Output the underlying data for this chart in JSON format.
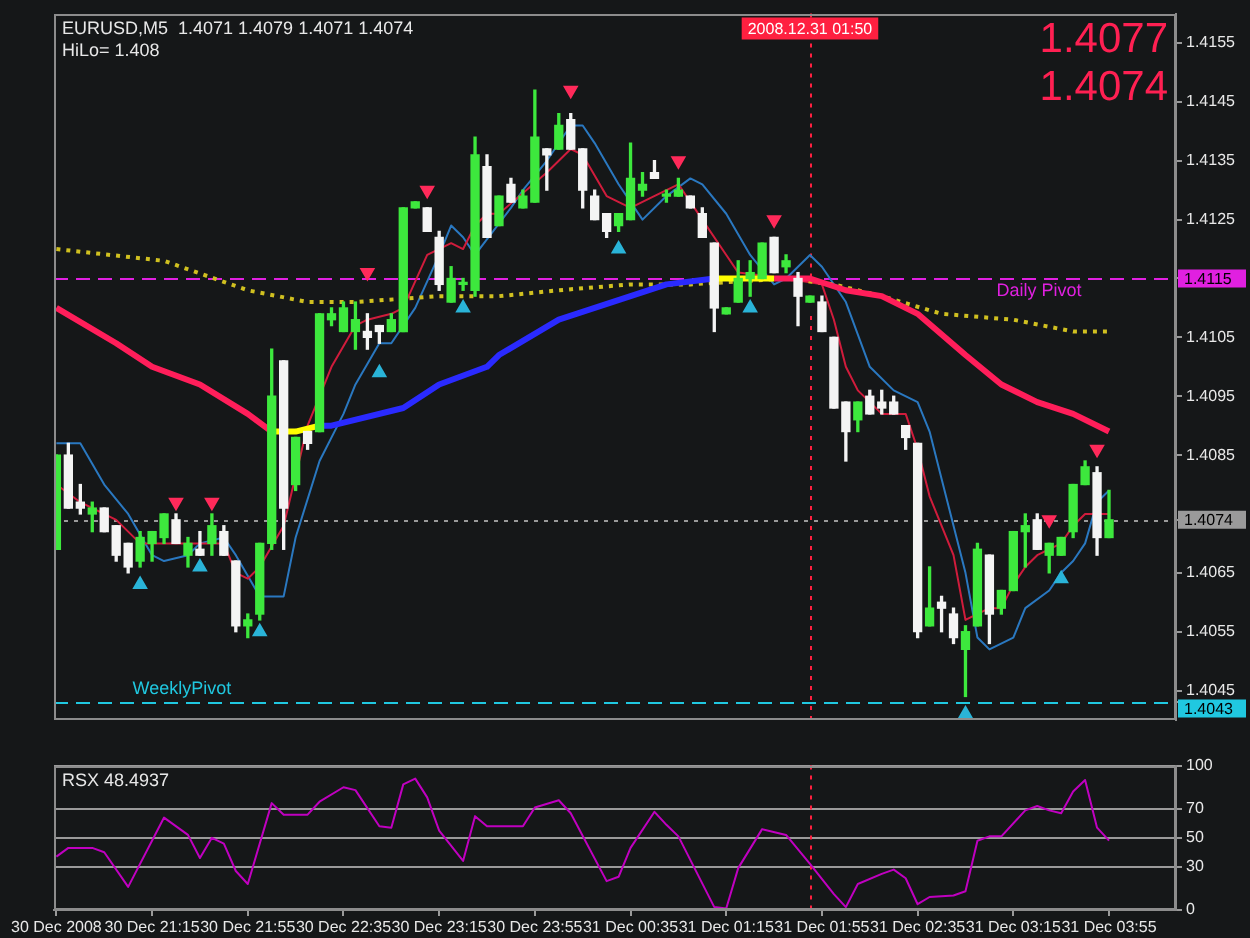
{
  "chart_data": [
    {
      "type": "candlestick",
      "title": "EURUSD,M5  1.4071 1.4079 1.4071 1.4074",
      "annotations": [
        "HiLo= 1.408",
        "1.4077",
        "1.4074"
      ],
      "x": [
        "2008-12-30T20:35",
        "2008-12-30T20:40",
        "2008-12-30T20:45",
        "2008-12-30T20:50",
        "2008-12-30T20:55",
        "2008-12-30T21:00",
        "2008-12-30T21:05",
        "2008-12-30T21:10",
        "2008-12-30T21:15",
        "2008-12-30T21:20",
        "2008-12-30T21:25",
        "2008-12-30T21:30",
        "2008-12-30T21:35",
        "2008-12-30T21:40",
        "2008-12-30T21:45",
        "2008-12-30T21:50",
        "2008-12-30T21:55",
        "2008-12-30T22:00",
        "2008-12-30T22:05",
        "2008-12-30T22:10",
        "2008-12-30T22:15",
        "2008-12-30T22:20",
        "2008-12-30T22:25",
        "2008-12-30T22:30",
        "2008-12-30T22:35",
        "2008-12-30T22:40",
        "2008-12-30T22:45",
        "2008-12-30T22:50",
        "2008-12-30T22:55",
        "2008-12-30T23:00",
        "2008-12-30T23:05",
        "2008-12-30T23:10",
        "2008-12-30T23:15",
        "2008-12-30T23:20",
        "2008-12-30T23:25",
        "2008-12-30T23:30",
        "2008-12-30T23:35",
        "2008-12-30T23:40",
        "2008-12-30T23:45",
        "2008-12-30T23:50",
        "2008-12-30T23:55",
        "2008-12-31T00:00",
        "2008-12-31T00:05",
        "2008-12-31T00:10",
        "2008-12-31T00:15",
        "2008-12-31T00:20",
        "2008-12-31T00:25",
        "2008-12-31T00:30",
        "2008-12-31T00:35",
        "2008-12-31T00:40",
        "2008-12-31T00:45",
        "2008-12-31T00:50",
        "2008-12-31T00:55",
        "2008-12-31T01:00",
        "2008-12-31T01:05",
        "2008-12-31T01:10",
        "2008-12-31T01:15",
        "2008-12-31T01:20",
        "2008-12-31T01:25",
        "2008-12-31T01:30",
        "2008-12-31T01:35",
        "2008-12-31T01:40",
        "2008-12-31T01:45",
        "2008-12-31T01:50",
        "2008-12-31T01:55",
        "2008-12-31T02:00",
        "2008-12-31T02:05",
        "2008-12-31T02:10",
        "2008-12-31T02:15",
        "2008-12-31T02:20",
        "2008-12-31T02:25",
        "2008-12-31T02:30",
        "2008-12-31T02:35",
        "2008-12-31T02:40",
        "2008-12-31T02:45",
        "2008-12-31T02:50",
        "2008-12-31T02:55",
        "2008-12-31T03:00",
        "2008-12-31T03:05",
        "2008-12-31T03:10",
        "2008-12-31T03:15",
        "2008-12-31T03:20",
        "2008-12-31T03:25",
        "2008-12-31T03:30",
        "2008-12-31T03:35",
        "2008-12-31T03:40",
        "2008-12-31T03:45",
        "2008-12-31T03:50",
        "2008-12-31T03:55"
      ],
      "ohlc": [
        [
          1.4069,
          1.4085,
          1.4069,
          1.4085
        ],
        [
          1.4085,
          1.4087,
          1.4076,
          1.4076
        ],
        [
          1.4077,
          1.408,
          1.4075,
          1.4076
        ],
        [
          1.4075,
          1.4077,
          1.4072,
          1.4076
        ],
        [
          1.4076,
          1.4076,
          1.4072,
          1.4072
        ],
        [
          1.4073,
          1.4073,
          1.4067,
          1.4068
        ],
        [
          1.407,
          1.407,
          1.4065,
          1.4066
        ],
        [
          1.4067,
          1.4072,
          1.4066,
          1.4071
        ],
        [
          1.407,
          1.4072,
          1.4067,
          1.4072
        ],
        [
          1.4071,
          1.4075,
          1.407,
          1.4075
        ],
        [
          1.4074,
          1.4075,
          1.407,
          1.407
        ],
        [
          1.4068,
          1.4071,
          1.4066,
          1.407
        ],
        [
          1.4069,
          1.4072,
          1.4068,
          1.4068
        ],
        [
          1.407,
          1.4075,
          1.4068,
          1.4073
        ],
        [
          1.4072,
          1.4073,
          1.4068,
          1.4068
        ],
        [
          1.4067,
          1.4067,
          1.4055,
          1.4056
        ],
        [
          1.4056,
          1.4058,
          1.4054,
          1.4057
        ],
        [
          1.4058,
          1.407,
          1.4057,
          1.407
        ],
        [
          1.407,
          1.4103,
          1.4069,
          1.4095
        ],
        [
          1.4101,
          1.4101,
          1.4069,
          1.4076
        ],
        [
          1.408,
          1.4088,
          1.4079,
          1.4088
        ],
        [
          1.4089,
          1.4089,
          1.4086,
          1.4087
        ],
        [
          1.4089,
          1.4109,
          1.4089,
          1.4109
        ],
        [
          1.4108,
          1.411,
          1.4107,
          1.4109
        ],
        [
          1.4106,
          1.4111,
          1.4106,
          1.411
        ],
        [
          1.4106,
          1.4111,
          1.4103,
          1.4108
        ],
        [
          1.4106,
          1.4109,
          1.4103,
          1.4105
        ],
        [
          1.4107,
          1.4107,
          1.4104,
          1.4106
        ],
        [
          1.4106,
          1.4109,
          1.4106,
          1.4108
        ],
        [
          1.4106,
          1.4127,
          1.4106,
          1.4127
        ],
        [
          1.4127,
          1.4128,
          1.4127,
          1.4128
        ],
        [
          1.4127,
          1.4127,
          1.4123,
          1.4123
        ],
        [
          1.4122,
          1.4123,
          1.4113,
          1.4114
        ],
        [
          1.4111,
          1.4117,
          1.4111,
          1.4115
        ],
        [
          1.4114,
          1.4115,
          1.4113,
          1.4114
        ],
        [
          1.4113,
          1.4139,
          1.4112,
          1.4136
        ],
        [
          1.4134,
          1.4136,
          1.4122,
          1.4122
        ],
        [
          1.4124,
          1.4129,
          1.4124,
          1.4129
        ],
        [
          1.4131,
          1.4132,
          1.4128,
          1.4128
        ],
        [
          1.4127,
          1.413,
          1.4127,
          1.4129
        ],
        [
          1.4128,
          1.4147,
          1.4128,
          1.4139
        ],
        [
          1.4137,
          1.4137,
          1.413,
          1.4136
        ],
        [
          1.4137,
          1.4143,
          1.4137,
          1.4141
        ],
        [
          1.4142,
          1.4143,
          1.4137,
          1.4137
        ],
        [
          1.4137,
          1.4137,
          1.4127,
          1.413
        ],
        [
          1.4129,
          1.413,
          1.4125,
          1.4125
        ],
        [
          1.4126,
          1.4126,
          1.4122,
          1.4123
        ],
        [
          1.4124,
          1.4126,
          1.4123,
          1.4126
        ],
        [
          1.4125,
          1.4138,
          1.4125,
          1.4132
        ],
        [
          1.413,
          1.4133,
          1.4129,
          1.4131
        ],
        [
          1.4133,
          1.4135,
          1.4132,
          1.4132
        ],
        [
          1.4129,
          1.413,
          1.4128,
          1.4129
        ],
        [
          1.4129,
          1.4132,
          1.4129,
          1.413
        ],
        [
          1.4129,
          1.4129,
          1.4127,
          1.4127
        ],
        [
          1.4126,
          1.4127,
          1.4122,
          1.4122
        ],
        [
          1.4121,
          1.4121,
          1.4106,
          1.411
        ],
        [
          1.4109,
          1.411,
          1.4109,
          1.411
        ],
        [
          1.4111,
          1.4118,
          1.4111,
          1.4115
        ],
        [
          1.4115,
          1.4118,
          1.4112,
          1.4116
        ],
        [
          1.4115,
          1.4121,
          1.4115,
          1.4121
        ],
        [
          1.4122,
          1.4122,
          1.4116,
          1.4116
        ],
        [
          1.4117,
          1.4119,
          1.4116,
          1.4118
        ],
        [
          1.4115,
          1.4116,
          1.4107,
          1.4112
        ],
        [
          1.4111,
          1.4112,
          1.4111,
          1.4112
        ],
        [
          1.4111,
          1.4112,
          1.4106,
          1.4106
        ],
        [
          1.4105,
          1.4105,
          1.4093,
          1.4093
        ],
        [
          1.4094,
          1.4094,
          1.4084,
          1.4089
        ],
        [
          1.4091,
          1.4094,
          1.4089,
          1.4094
        ],
        [
          1.4095,
          1.4096,
          1.4092,
          1.4092
        ],
        [
          1.4094,
          1.4096,
          1.4092,
          1.4093
        ],
        [
          1.4094,
          1.4095,
          1.4092,
          1.4092
        ],
        [
          1.409,
          1.409,
          1.4086,
          1.4088
        ],
        [
          1.4087,
          1.4087,
          1.4054,
          1.4055
        ],
        [
          1.4056,
          1.4066,
          1.4056,
          1.4059
        ],
        [
          1.406,
          1.4061,
          1.4055,
          1.4059
        ],
        [
          1.4058,
          1.4059,
          1.4053,
          1.4054
        ],
        [
          1.4052,
          1.4056,
          1.4044,
          1.4055
        ],
        [
          1.4056,
          1.407,
          1.4056,
          1.4069
        ],
        [
          1.4068,
          1.4068,
          1.4053,
          1.4058
        ],
        [
          1.4059,
          1.4062,
          1.4058,
          1.4062
        ],
        [
          1.4062,
          1.4072,
          1.4062,
          1.4072
        ],
        [
          1.4072,
          1.4075,
          1.4066,
          1.4073
        ],
        [
          1.4074,
          1.4075,
          1.4069,
          1.4069
        ],
        [
          1.4068,
          1.407,
          1.4065,
          1.407
        ],
        [
          1.4068,
          1.4071,
          1.4068,
          1.4071
        ],
        [
          1.4072,
          1.408,
          1.4071,
          1.408
        ],
        [
          1.408,
          1.4084,
          1.408,
          1.4083
        ],
        [
          1.4082,
          1.4083,
          1.4068,
          1.4071
        ],
        [
          1.4071,
          1.4079,
          1.4071,
          1.4074
        ]
      ],
      "colors": [
        "#3de83d",
        "#f4f4f4",
        "#f4f4f4",
        "#3de83d",
        "#f4f4f4",
        "#f4f4f4",
        "#f4f4f4",
        "#3de83d",
        "#3de83d",
        "#3de83d",
        "#f4f4f4",
        "#3de83d",
        "#f4f4f4",
        "#3de83d",
        "#f4f4f4",
        "#f4f4f4",
        "#3de83d",
        "#3de83d",
        "#3de83d",
        "#f4f4f4",
        "#3de83d",
        "#f4f4f4",
        "#3de83d",
        "#3de83d",
        "#3de83d",
        "#3de83d",
        "#f4f4f4",
        "#f4f4f4",
        "#3de83d",
        "#3de83d",
        "#3de83d",
        "#f4f4f4",
        "#f4f4f4",
        "#3de83d",
        "#3de83d",
        "#3de83d",
        "#f4f4f4",
        "#3de83d",
        "#f4f4f4",
        "#3de83d",
        "#3de83d",
        "#f4f4f4",
        "#3de83d",
        "#f4f4f4",
        "#f4f4f4",
        "#f4f4f4",
        "#f4f4f4",
        "#3de83d",
        "#3de83d",
        "#3de83d",
        "#f4f4f4",
        "#3de83d",
        "#3de83d",
        "#f4f4f4",
        "#f4f4f4",
        "#f4f4f4",
        "#3de83d",
        "#3de83d",
        "#3de83d",
        "#3de83d",
        "#f4f4f4",
        "#3de83d",
        "#f4f4f4",
        "#3de83d",
        "#f4f4f4",
        "#f4f4f4",
        "#f4f4f4",
        "#3de83d",
        "#f4f4f4",
        "#f4f4f4",
        "#f4f4f4",
        "#f4f4f4",
        "#f4f4f4",
        "#3de83d",
        "#f4f4f4",
        "#f4f4f4",
        "#3de83d",
        "#3de83d",
        "#f4f4f4",
        "#3de83d",
        "#3de83d",
        "#3de83d",
        "#f4f4f4",
        "#3de83d",
        "#3de83d",
        "#3de83d",
        "#3de83d",
        "#f4f4f4",
        "#3de83d"
      ],
      "xlim": [
        "2008-12-30T20:34",
        "2008-12-31T04:23"
      ],
      "ylim": [
        1.404,
        1.416
      ],
      "yticks": [
        1.4043,
        1.4045,
        1.4055,
        1.4065,
        1.4074,
        1.4085,
        1.4095,
        1.4105,
        1.4115,
        1.4125,
        1.4135,
        1.4145,
        1.4155
      ],
      "tick_labels": "y",
      "ref_lines": [
        {
          "axis": "y",
          "value": 1.4115,
          "label": "Daily Pivot",
          "color": "#e020e0",
          "line_style": "dashed"
        },
        {
          "axis": "y",
          "value": 1.4043,
          "label": "WeeklyPivot",
          "color": "#20c8e0",
          "line_style": "dashed"
        },
        {
          "axis": "y",
          "value": 1.4074,
          "color": "#9a9a9a",
          "line_style": "dotted"
        },
        {
          "axis": "x",
          "value": "2008-12-31T01:50",
          "label": "2008.12.31 01:50",
          "color": "#ff2040",
          "line_style": "dotted"
        }
      ],
      "series": [
        {
          "type": "line",
          "color": "#ff1e5a",
          "x": [
            "2008-12-30T20:35",
            "2008-12-30T21:00",
            "2008-12-30T21:15",
            "2008-12-30T21:35",
            "2008-12-30T21:55",
            "2008-12-30T22:05"
          ],
          "values": [
            1.411,
            1.4104,
            1.41,
            1.4097,
            1.4092,
            1.4089
          ]
        },
        {
          "type": "line",
          "color": "#ffff00",
          "x": [
            "2008-12-30T22:05",
            "2008-12-30T22:15",
            "2008-12-30T22:25"
          ],
          "values": [
            1.4089,
            1.4089,
            1.409
          ]
        },
        {
          "type": "line",
          "color": "#2a2aff",
          "x": [
            "2008-12-30T22:25",
            "2008-12-30T22:30",
            "2008-12-30T23:00",
            "2008-12-30T23:15",
            "2008-12-30T23:35",
            "2008-12-30T23:40",
            "2008-12-31T00:05",
            "2008-12-31T00:20",
            "2008-12-31T00:35",
            "2008-12-31T00:50",
            "2008-12-31T01:10"
          ],
          "values": [
            1.409,
            1.409,
            1.4093,
            1.4097,
            1.41,
            1.4102,
            1.4108,
            1.411,
            1.4112,
            1.4114,
            1.4115
          ]
        },
        {
          "type": "line",
          "color": "#ffff00",
          "x": [
            "2008-12-31T01:10",
            "2008-12-31T01:20",
            "2008-12-31T01:35"
          ],
          "values": [
            1.4115,
            1.4115,
            1.4115
          ]
        },
        {
          "type": "line",
          "color": "#ff1e5a",
          "x": [
            "2008-12-31T01:35",
            "2008-12-31T01:50",
            "2008-12-31T02:05",
            "2008-12-31T02:20",
            "2008-12-31T02:35",
            "2008-12-31T02:55",
            "2008-12-31T03:10",
            "2008-12-31T03:25",
            "2008-12-31T03:40",
            "2008-12-31T03:55"
          ],
          "values": [
            1.4115,
            1.4115,
            1.4113,
            1.4112,
            1.4109,
            1.4102,
            1.4097,
            1.4094,
            1.4092,
            1.4089
          ]
        },
        {
          "type": "line",
          "color": "#d0c020",
          "line_style": "dotted",
          "x": [
            "2008-12-30T20:35",
            "2008-12-30T21:20",
            "2008-12-30T21:55",
            "2008-12-30T22:20",
            "2008-12-30T22:40",
            "2008-12-30T23:15",
            "2008-12-30T23:40",
            "2008-12-31T00:05",
            "2008-12-31T00:35",
            "2008-12-31T01:00",
            "2008-12-31T01:40",
            "2008-12-31T02:00",
            "2008-12-31T02:20",
            "2008-12-31T02:45",
            "2008-12-31T03:15",
            "2008-12-31T03:40",
            "2008-12-31T03:55"
          ],
          "values": [
            1.412,
            1.4118,
            1.4113,
            1.4111,
            1.4111,
            1.4112,
            1.4112,
            1.4113,
            1.4114,
            1.4114,
            1.4115,
            1.4114,
            1.4112,
            1.4109,
            1.4108,
            1.4106,
            1.4106
          ]
        },
        {
          "type": "line",
          "color": "#d01c3c",
          "x": [
            "2008-12-30T20:35",
            "2008-12-30T20:45",
            "2008-12-30T21:00",
            "2008-12-30T21:10",
            "2008-12-30T21:20",
            "2008-12-30T21:35",
            "2008-12-30T21:45",
            "2008-12-30T21:50",
            "2008-12-30T21:55",
            "2008-12-30T22:00",
            "2008-12-30T22:10",
            "2008-12-30T22:20",
            "2008-12-30T22:30",
            "2008-12-30T22:40",
            "2008-12-30T22:45",
            "2008-12-30T22:55",
            "2008-12-30T23:00",
            "2008-12-30T23:10",
            "2008-12-30T23:20",
            "2008-12-30T23:25",
            "2008-12-30T23:30",
            "2008-12-30T23:35",
            "2008-12-30T23:40",
            "2008-12-31T00:00",
            "2008-12-31T00:10",
            "2008-12-31T00:15",
            "2008-12-31T00:25",
            "2008-12-31T00:35",
            "2008-12-31T00:40",
            "2008-12-31T00:50",
            "2008-12-31T00:55",
            "2008-12-31T01:05",
            "2008-12-31T01:15",
            "2008-12-31T01:20",
            "2008-12-31T01:40",
            "2008-12-31T01:55",
            "2008-12-31T02:00",
            "2008-12-31T02:05",
            "2008-12-31T02:10",
            "2008-12-31T02:20",
            "2008-12-31T02:30",
            "2008-12-31T02:35",
            "2008-12-31T02:40",
            "2008-12-31T02:50",
            "2008-12-31T02:55",
            "2008-12-31T03:05",
            "2008-12-31T03:10",
            "2008-12-31T03:15",
            "2008-12-31T03:20",
            "2008-12-31T03:25",
            "2008-12-31T03:35",
            "2008-12-31T03:40",
            "2008-12-31T03:45",
            "2008-12-31T03:50",
            "2008-12-31T03:55"
          ],
          "values": [
            1.408,
            1.4077,
            1.4074,
            1.407,
            1.407,
            1.407,
            1.407,
            1.4065,
            1.4064,
            1.4066,
            1.4073,
            1.409,
            1.41,
            1.4107,
            1.4108,
            1.4109,
            1.411,
            1.4119,
            1.4121,
            1.412,
            1.4124,
            1.4126,
            1.4126,
            1.4133,
            1.4137,
            1.4136,
            1.4129,
            1.4127,
            1.4128,
            1.413,
            1.4131,
            1.4125,
            1.4119,
            1.4116,
            1.4115,
            1.4114,
            1.4108,
            1.41,
            1.4096,
            1.4092,
            1.4092,
            1.4086,
            1.4078,
            1.4068,
            1.4057,
            1.4059,
            1.4059,
            1.4063,
            1.4066,
            1.4068,
            1.407,
            1.4073,
            1.4075,
            1.4075,
            1.4075
          ]
        },
        {
          "type": "line",
          "color": "#2a78c0",
          "x": [
            "2008-12-30T20:35",
            "2008-12-30T20:45",
            "2008-12-30T20:55",
            "2008-12-30T21:05",
            "2008-12-30T21:15",
            "2008-12-30T21:20",
            "2008-12-30T21:30",
            "2008-12-30T21:35",
            "2008-12-30T21:45",
            "2008-12-30T21:50",
            "2008-12-30T22:00",
            "2008-12-30T22:10",
            "2008-12-30T22:15",
            "2008-12-30T22:25",
            "2008-12-30T22:35",
            "2008-12-30T22:40",
            "2008-12-30T22:50",
            "2008-12-30T22:55",
            "2008-12-30T23:05",
            "2008-12-30T23:15",
            "2008-12-30T23:20",
            "2008-12-30T23:25",
            "2008-12-30T23:30",
            "2008-12-30T23:45",
            "2008-12-30T23:50",
            "2008-12-31T00:00",
            "2008-12-31T00:10",
            "2008-12-31T00:15",
            "2008-12-31T00:20",
            "2008-12-31T00:30",
            "2008-12-31T00:40",
            "2008-12-31T00:50",
            "2008-12-31T01:00",
            "2008-12-31T01:05",
            "2008-12-31T01:15",
            "2008-12-31T01:25",
            "2008-12-31T01:35",
            "2008-12-31T01:40",
            "2008-12-31T01:50",
            "2008-12-31T01:55",
            "2008-12-31T02:05",
            "2008-12-31T02:15",
            "2008-12-31T02:25",
            "2008-12-31T02:35",
            "2008-12-31T02:40",
            "2008-12-31T02:45",
            "2008-12-31T02:50",
            "2008-12-31T02:55",
            "2008-12-31T03:00",
            "2008-12-31T03:05",
            "2008-12-31T03:15",
            "2008-12-31T03:20",
            "2008-12-31T03:30",
            "2008-12-31T03:35",
            "2008-12-31T03:40",
            "2008-12-31T03:45",
            "2008-12-31T03:50",
            "2008-12-31T03:55"
          ],
          "values": [
            1.4087,
            1.4087,
            1.408,
            1.4075,
            1.4068,
            1.4067,
            1.4068,
            1.407,
            1.4071,
            1.4068,
            1.4061,
            1.4061,
            1.4071,
            1.4084,
            1.4092,
            1.4097,
            1.4104,
            1.4104,
            1.411,
            1.4119,
            1.4124,
            1.4122,
            1.4119,
            1.4127,
            1.413,
            1.4135,
            1.4141,
            1.4141,
            1.4138,
            1.4131,
            1.4125,
            1.4129,
            1.4132,
            1.4131,
            1.4126,
            1.4119,
            1.4114,
            1.4115,
            1.4119,
            1.4117,
            1.4111,
            1.41,
            1.4096,
            1.4094,
            1.4089,
            1.4081,
            1.4073,
            1.4065,
            1.4054,
            1.4052,
            1.4054,
            1.4059,
            1.4062,
            1.4065,
            1.4067,
            1.407,
            1.4077,
            1.4079
          ]
        },
        {
          "type": "scatter",
          "color": "#ff2a5a",
          "marker": "triangle",
          "x": [
            "2008-12-30T21:25",
            "2008-12-30T21:40",
            "2008-12-30T22:45",
            "2008-12-30T23:10",
            "2008-12-31T00:10",
            "2008-12-31T00:55",
            "2008-12-31T01:35",
            "2008-12-31T03:30",
            "2008-12-31T03:50"
          ],
          "values": [
            1.4077,
            1.4077,
            1.4116,
            1.413,
            1.4147,
            1.4135,
            1.4125,
            1.4074,
            1.4086
          ]
        },
        {
          "type": "scatter",
          "color": "#2ab4d8",
          "marker": "triangle",
          "x": [
            "2008-12-30T21:10",
            "2008-12-30T21:35",
            "2008-12-30T22:00",
            "2008-12-30T22:50",
            "2008-12-30T23:25",
            "2008-12-31T00:30",
            "2008-12-31T01:25",
            "2008-12-31T02:55",
            "2008-12-31T03:35"
          ],
          "values": [
            1.4063,
            1.4066,
            1.4055,
            1.4099,
            1.411,
            1.412,
            1.411,
            1.4041,
            1.4064
          ]
        }
      ]
    },
    {
      "type": "line",
      "title": "RSX 48.4937",
      "color": "#c000c0",
      "x": [
        "2008-12-30T20:35",
        "2008-12-30T20:40",
        "2008-12-30T20:50",
        "2008-12-30T20:55",
        "2008-12-30T21:05",
        "2008-12-30T21:20",
        "2008-12-30T21:30",
        "2008-12-30T21:35",
        "2008-12-30T21:40",
        "2008-12-30T21:45",
        "2008-12-30T21:50",
        "2008-12-30T21:55",
        "2008-12-30T22:05",
        "2008-12-30T22:10",
        "2008-12-30T22:20",
        "2008-12-30T22:25",
        "2008-12-30T22:35",
        "2008-12-30T22:40",
        "2008-12-30T22:50",
        "2008-12-30T22:55",
        "2008-12-30T23:00",
        "2008-12-30T23:05",
        "2008-12-30T23:10",
        "2008-12-30T23:15",
        "2008-12-30T23:25",
        "2008-12-30T23:30",
        "2008-12-30T23:35",
        "2008-12-30T23:50",
        "2008-12-30T23:55",
        "2008-12-31T00:05",
        "2008-12-31T00:10",
        "2008-12-31T00:25",
        "2008-12-31T00:30",
        "2008-12-31T00:35",
        "2008-12-31T00:45",
        "2008-12-31T00:50",
        "2008-12-31T00:55",
        "2008-12-31T01:10",
        "2008-12-31T01:15",
        "2008-12-31T01:20",
        "2008-12-31T01:30",
        "2008-12-31T01:40",
        "2008-12-31T01:50",
        "2008-12-31T02:00",
        "2008-12-31T02:05",
        "2008-12-31T02:10",
        "2008-12-31T02:20",
        "2008-12-31T02:25",
        "2008-12-31T02:30",
        "2008-12-31T02:35",
        "2008-12-31T02:40",
        "2008-12-31T02:50",
        "2008-12-31T02:55",
        "2008-12-31T03:00",
        "2008-12-31T03:05",
        "2008-12-31T03:10",
        "2008-12-31T03:20",
        "2008-12-31T03:25",
        "2008-12-31T03:30",
        "2008-12-31T03:35",
        "2008-12-31T03:40",
        "2008-12-31T03:45",
        "2008-12-31T03:50",
        "2008-12-31T03:55"
      ],
      "values": [
        37,
        43,
        43,
        40,
        16,
        64,
        52,
        36,
        50,
        46,
        27,
        18,
        74,
        66,
        66,
        75,
        85,
        83,
        58,
        57,
        87,
        91,
        78,
        55,
        34,
        65,
        58,
        58,
        71,
        76,
        67,
        20,
        23,
        43,
        68,
        59,
        51,
        2,
        1,
        29,
        56,
        52,
        32,
        11,
        2,
        18,
        25,
        28,
        22,
        4,
        9,
        10,
        13,
        48,
        51,
        51,
        69,
        72,
        69,
        67,
        82,
        90,
        57,
        48
      ],
      "xlim": [
        "2008-12-30T20:34",
        "2008-12-31T04:23"
      ],
      "ylim": [
        0,
        100
      ],
      "xticks": [
        {
          "value": "2008-12-30T20:35",
          "label": "30 Dec 2008"
        },
        {
          "value": "2008-12-30T21:15",
          "label": "30 Dec 21:15"
        },
        {
          "value": "2008-12-30T21:55",
          "label": "30 Dec 21:55"
        },
        {
          "value": "2008-12-30T22:35",
          "label": "30 Dec 22:35"
        },
        {
          "value": "2008-12-30T23:15",
          "label": "30 Dec 23:15"
        },
        {
          "value": "2008-12-30T23:55",
          "label": "30 Dec 23:55"
        },
        {
          "value": "2008-12-31T00:35",
          "label": "31 Dec 00:35"
        },
        {
          "value": "2008-12-31T01:15",
          "label": "31 Dec 01:15"
        },
        {
          "value": "2008-12-31T01:55",
          "label": "31 Dec 01:55"
        },
        {
          "value": "2008-12-31T02:35",
          "label": "31 Dec 02:35"
        },
        {
          "value": "2008-12-31T03:15",
          "label": "31 Dec 03:15"
        },
        {
          "value": "2008-12-31T03:55",
          "label": "31 Dec 03:55"
        }
      ],
      "yticks": [
        0,
        30,
        50,
        70,
        100
      ],
      "grid": "y",
      "ref_lines": [
        {
          "axis": "x",
          "value": "2008-12-31T01:50",
          "color": "#ff2040",
          "line_style": "dotted"
        }
      ]
    }
  ]
}
